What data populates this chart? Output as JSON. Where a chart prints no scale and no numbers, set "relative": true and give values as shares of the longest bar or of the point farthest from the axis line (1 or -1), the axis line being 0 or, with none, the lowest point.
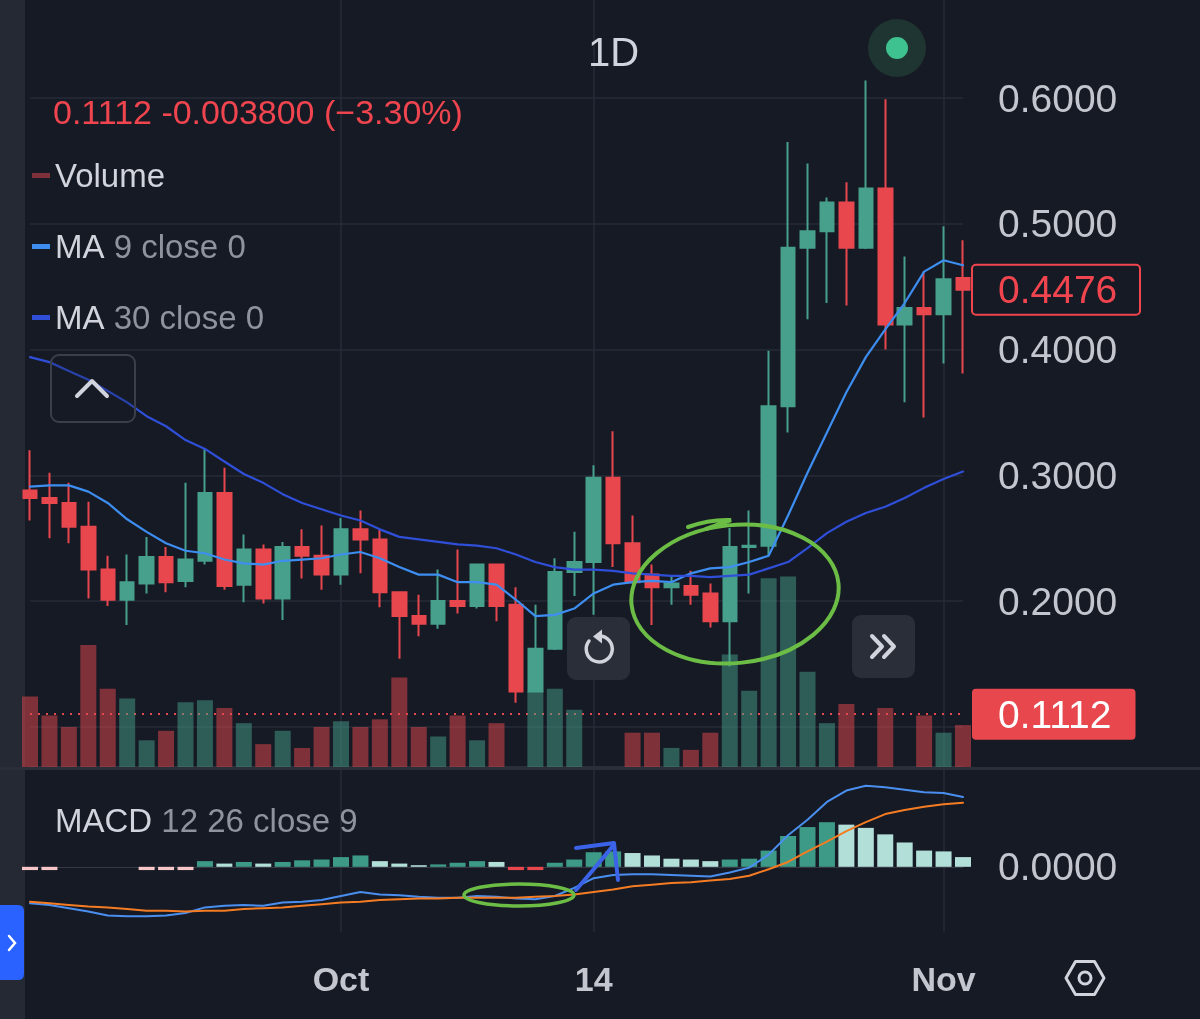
{
  "chart_data": [
    {
      "type": "candlestick",
      "title": "1D",
      "subtitle": "0.1112 -0.003800 (−3.30%)",
      "categories": [
        null,
        null,
        null,
        null,
        null,
        null,
        null,
        null,
        null,
        null,
        null,
        null,
        null,
        null,
        null,
        null,
        null,
        null,
        null,
        null,
        null,
        null,
        null,
        null,
        null,
        null,
        null,
        null,
        null,
        null,
        null,
        null,
        null,
        null,
        null,
        null,
        null,
        null,
        null,
        null,
        null,
        null,
        null,
        null,
        null,
        null,
        null,
        null,
        null
      ],
      "ohlc": [
        [
          0.288,
          0.32,
          0.264,
          0.282
        ],
        [
          0.282,
          0.302,
          0.25,
          0.278
        ],
        [
          0.278,
          0.294,
          0.246,
          0.259
        ],
        [
          0.259,
          0.279,
          0.202,
          0.225
        ],
        [
          0.225,
          0.236,
          0.196,
          0.201
        ],
        [
          0.201,
          0.237,
          0.181,
          0.215
        ],
        [
          0.214,
          0.251,
          0.206,
          0.235
        ],
        [
          0.235,
          0.243,
          0.207,
          0.215
        ],
        [
          0.216,
          0.294,
          0.211,
          0.233
        ],
        [
          0.232,
          0.321,
          0.229,
          0.286
        ],
        [
          0.286,
          0.306,
          0.209,
          0.212
        ],
        [
          0.213,
          0.253,
          0.199,
          0.241
        ],
        [
          0.241,
          0.245,
          0.198,
          0.202
        ],
        [
          0.202,
          0.247,
          0.185,
          0.243
        ],
        [
          0.243,
          0.257,
          0.218,
          0.236
        ],
        [
          0.236,
          0.26,
          0.209,
          0.221
        ],
        [
          0.221,
          0.266,
          0.213,
          0.257
        ],
        [
          0.257,
          0.272,
          0.222,
          0.249
        ],
        [
          0.249,
          0.257,
          0.195,
          0.207
        ],
        [
          0.207,
          0.207,
          0.154,
          0.188
        ],
        [
          0.188,
          0.205,
          0.172,
          0.182
        ],
        [
          0.182,
          0.225,
          0.178,
          0.2
        ],
        [
          0.2,
          0.241,
          0.19,
          0.196
        ],
        [
          0.196,
          0.229,
          0.194,
          0.229
        ],
        [
          0.229,
          0.229,
          0.184,
          0.196
        ],
        [
          0.197,
          0.211,
          0.119,
          0.128
        ],
        [
          0.128,
          0.197,
          0.128,
          0.162
        ],
        [
          0.162,
          0.234,
          0.161,
          0.223
        ],
        [
          0.223,
          0.255,
          0.204,
          0.231
        ],
        [
          0.231,
          0.308,
          0.189,
          0.298
        ],
        [
          0.298,
          0.335,
          0.227,
          0.246
        ],
        [
          0.246,
          0.268,
          0.214,
          0.215
        ],
        [
          0.221,
          0.229,
          0.181,
          0.211
        ],
        [
          0.211,
          0.22,
          0.197,
          0.214
        ],
        [
          0.212,
          0.224,
          0.197,
          0.205
        ],
        [
          0.206,
          0.214,
          0.179,
          0.184
        ],
        [
          0.184,
          0.258,
          0.148,
          0.243
        ],
        [
          0.243,
          0.272,
          0.206,
          0.244
        ],
        [
          0.244,
          0.399,
          0.236,
          0.355
        ],
        [
          0.355,
          0.565,
          0.334,
          0.481
        ],
        [
          0.481,
          0.548,
          0.424,
          0.494
        ],
        [
          0.494,
          0.521,
          0.437,
          0.517
        ],
        [
          0.517,
          0.533,
          0.435,
          0.481
        ],
        [
          0.481,
          0.614,
          0.48,
          0.528
        ],
        [
          0.528,
          0.599,
          0.4,
          0.42
        ],
        [
          0.42,
          0.474,
          0.358,
          0.433
        ],
        [
          0.433,
          0.462,
          0.346,
          0.428
        ],
        [
          0.428,
          0.498,
          0.389,
          0.456
        ],
        [
          0.457,
          0.487,
          0.381,
          0.4476
        ]
      ],
      "colors": [
        "#e8474d",
        "#e8474d",
        "#e8474d",
        "#e8474d",
        "#e8474d",
        "#46a08b",
        "#46a08b",
        "#e8474d",
        "#46a08b",
        "#46a08b",
        "#e8474d",
        "#46a08b",
        "#e8474d",
        "#46a08b",
        "#e8474d",
        "#e8474d",
        "#46a08b",
        "#e8474d",
        "#e8474d",
        "#e8474d",
        "#e8474d",
        "#46a08b",
        "#e8474d",
        "#46a08b",
        "#e8474d",
        "#e8474d",
        "#46a08b",
        "#46a08b",
        "#46a08b",
        "#46a08b",
        "#e8474d",
        "#e8474d",
        "#e8474d",
        "#46a08b",
        "#e8474d",
        "#e8474d",
        "#46a08b",
        "#46a08b",
        "#46a08b",
        "#46a08b",
        "#46a08b",
        "#46a08b",
        "#e8474d",
        "#46a08b",
        "#e8474d",
        "#46a08b",
        "#e8474d",
        "#46a08b",
        "#e8474d"
      ],
      "series": [
        {
          "name": "MA 9 close 0",
          "type": "line",
          "color": "#3d8ef0",
          "values": [
            0.291,
            0.292,
            0.292,
            0.287,
            0.278,
            0.265,
            0.255,
            0.246,
            0.24,
            0.238,
            0.233,
            0.23,
            0.229,
            0.232,
            0.233,
            0.234,
            0.237,
            0.239,
            0.234,
            0.227,
            0.221,
            0.221,
            0.215,
            0.215,
            0.213,
            0.201,
            0.188,
            0.189,
            0.194,
            0.206,
            0.213,
            0.215,
            0.216,
            0.215,
            0.222,
            0.226,
            0.227,
            0.231,
            0.236,
            0.268,
            0.302,
            0.334,
            0.366,
            0.394,
            0.416,
            0.437,
            0.462,
            0.471,
            0.467
          ]
        },
        {
          "name": "MA 30 close 0",
          "type": "line",
          "color": "#2f4fd8",
          "values": [
            0.394,
            0.39,
            0.383,
            0.376,
            0.367,
            0.358,
            0.347,
            0.339,
            0.328,
            0.321,
            0.311,
            0.301,
            0.294,
            0.285,
            0.278,
            0.273,
            0.268,
            0.264,
            0.257,
            0.251,
            0.249,
            0.247,
            0.245,
            0.244,
            0.242,
            0.237,
            0.231,
            0.227,
            0.225,
            0.225,
            0.224,
            0.222,
            0.221,
            0.22,
            0.22,
            0.219,
            0.22,
            0.221,
            0.226,
            0.231,
            0.242,
            0.254,
            0.263,
            0.27,
            0.275,
            0.282,
            0.29,
            0.297,
            0.303
          ]
        }
      ],
      "ylim": [
        0.068,
        0.678
      ],
      "yticks": [
        {
          "value": 0.1,
          "label": null
        },
        {
          "value": 0.2,
          "label": "0.2000"
        },
        {
          "value": 0.3,
          "label": "0.3000"
        },
        {
          "value": 0.4,
          "label": "0.4000"
        },
        {
          "value": 0.5,
          "label": "0.5000"
        },
        {
          "value": 0.6,
          "label": "0.6000"
        }
      ],
      "ref_lines": [
        {
          "axis": "y",
          "value": 0.1112,
          "label": "0.1112",
          "color": "#e8474d",
          "line_style": "dotted"
        }
      ],
      "annotations": [
        "0.4476"
      ],
      "grid": true,
      "legend": "top left",
      "tick_labels": "y",
      "marker": "none"
    },
    {
      "type": "bar",
      "relative": true,
      "categories": [
        null,
        null,
        null,
        null,
        null,
        null,
        null,
        null,
        null,
        null,
        null,
        null,
        null,
        null,
        null,
        null,
        null,
        null,
        null,
        null,
        null,
        null,
        null,
        null,
        null,
        null,
        null,
        null,
        null,
        null,
        null,
        null,
        null,
        null,
        null,
        null,
        null,
        null,
        null,
        null,
        null,
        null,
        null,
        null,
        null,
        null,
        null,
        null,
        null
      ],
      "series": [
        {
          "name": "Volume",
          "values": [
            0.37,
            0.27,
            0.21,
            0.64,
            0.41,
            0.36,
            0.14,
            0.19,
            0.34,
            0.35,
            0.31,
            0.23,
            0.12,
            0.19,
            0.1,
            0.21,
            0.24,
            0.21,
            0.25,
            0.47,
            0.21,
            0.16,
            0.27,
            0.14,
            0.23,
            null,
            0.4,
            0.41,
            0.3,
            null,
            null,
            0.18,
            0.18,
            0.1,
            0.09,
            0.18,
            0.59,
            0.4,
            0.99,
            1,
            0.5,
            0.23,
            0.33,
            null,
            0.31,
            null,
            0.27,
            0.18,
            0.22
          ],
          "colors": [
            "#e8474d",
            "#e8474d",
            "#e8474d",
            "#e8474d",
            "#e8474d",
            "#46a08b",
            "#46a08b",
            "#e8474d",
            "#46a08b",
            "#46a08b",
            "#e8474d",
            "#46a08b",
            "#e8474d",
            "#46a08b",
            "#e8474d",
            "#e8474d",
            "#46a08b",
            "#e8474d",
            "#e8474d",
            "#e8474d",
            "#e8474d",
            "#46a08b",
            "#e8474d",
            "#46a08b",
            "#e8474d",
            null,
            "#46a08b",
            "#46a08b",
            "#46a08b",
            null,
            null,
            "#e8474d",
            "#e8474d",
            "#46a08b",
            "#e8474d",
            "#e8474d",
            "#46a08b",
            "#46a08b",
            "#46a08b",
            "#46a08b",
            "#46a08b",
            "#46a08b",
            "#e8474d",
            null,
            "#e8474d",
            null,
            "#e8474d",
            "#46a08b",
            "#e8474d"
          ]
        }
      ],
      "legend": "top left",
      "tick_labels": false
    },
    {
      "type": "bar",
      "relative": true,
      "title": "MACD 12 26 close 9",
      "categories": [
        null,
        null,
        null,
        null,
        null,
        null,
        null,
        null,
        null,
        null,
        null,
        null,
        null,
        null,
        null,
        null,
        "Oct",
        null,
        null,
        null,
        null,
        null,
        null,
        null,
        null,
        null,
        null,
        null,
        null,
        "14",
        null,
        null,
        null,
        null,
        null,
        null,
        null,
        null,
        null,
        null,
        null,
        null,
        null,
        null,
        null,
        null,
        null,
        "Nov",
        null
      ],
      "series": [
        {
          "type": "bar",
          "values": [
            -0.04,
            -0.04,
            null,
            null,
            null,
            null,
            -0.04,
            -0.04,
            -0.04,
            0.07,
            0.04,
            0.06,
            0.04,
            0.06,
            0.08,
            0.09,
            0.12,
            0.14,
            0.07,
            0.04,
            0.02,
            0.03,
            0.05,
            0.07,
            0.06,
            -0.04,
            -0.04,
            0.05,
            0.09,
            0.18,
            0.19,
            0.17,
            0.14,
            0.1,
            0.09,
            0.07,
            0.09,
            0.1,
            0.2,
            0.38,
            0.49,
            0.55,
            0.52,
            0.48,
            0.4,
            0.3,
            0.2,
            0.19,
            0.12
          ],
          "colors": [
            "#f7c6c8",
            "#f7c6c8",
            null,
            null,
            null,
            null,
            "#f7c6c8",
            "#f7c6c8",
            "#f7c6c8",
            "#3d9a86",
            "#b3dfd9",
            "#3d9a86",
            "#b3dfd9",
            "#3d9a86",
            "#3d9a86",
            "#3d9a86",
            "#3d9a86",
            "#3d9a86",
            "#b3dfd9",
            "#b3dfd9",
            "#b3dfd9",
            "#3d9a86",
            "#3d9a86",
            "#3d9a86",
            "#b3dfd9",
            "#e8474d",
            "#e8474d",
            "#3d9a86",
            "#3d9a86",
            "#3d9a86",
            "#3d9a86",
            "#b3dfd9",
            "#b3dfd9",
            "#b3dfd9",
            "#b3dfd9",
            "#b3dfd9",
            "#3d9a86",
            "#3d9a86",
            "#3d9a86",
            "#3d9a86",
            "#3d9a86",
            "#3d9a86",
            "#b3dfd9",
            "#b3dfd9",
            "#b3dfd9",
            "#b3dfd9",
            "#b3dfd9",
            "#b3dfd9",
            "#b3dfd9"
          ]
        },
        {
          "type": "line",
          "color": "#4a8ff0",
          "values": [
            -0.45,
            -0.47,
            -0.51,
            -0.55,
            -0.6,
            -0.61,
            -0.61,
            -0.6,
            -0.57,
            -0.5,
            -0.48,
            -0.47,
            -0.48,
            -0.44,
            -0.43,
            -0.41,
            -0.36,
            -0.31,
            -0.34,
            -0.35,
            -0.37,
            -0.38,
            -0.38,
            -0.36,
            -0.37,
            -0.39,
            -0.4,
            -0.36,
            -0.26,
            -0.14,
            -0.1,
            -0.09,
            -0.09,
            -0.1,
            -0.11,
            -0.12,
            -0.07,
            -0.01,
            0.15,
            0.39,
            0.58,
            0.8,
            0.94,
            1,
            0.98,
            0.95,
            0.92,
            0.91,
            0.86
          ]
        },
        {
          "type": "line",
          "color": "#f57c22",
          "values": [
            -0.43,
            -0.45,
            -0.47,
            -0.49,
            -0.5,
            -0.52,
            -0.54,
            -0.54,
            -0.55,
            -0.54,
            -0.54,
            -0.52,
            -0.51,
            -0.5,
            -0.48,
            -0.46,
            -0.44,
            -0.43,
            -0.41,
            -0.4,
            -0.39,
            -0.39,
            -0.38,
            -0.38,
            -0.38,
            -0.38,
            -0.37,
            -0.36,
            -0.34,
            -0.31,
            -0.28,
            -0.24,
            -0.22,
            -0.2,
            -0.19,
            -0.17,
            -0.15,
            -0.11,
            -0.03,
            0.06,
            0.19,
            0.31,
            0.44,
            0.55,
            0.65,
            0.7,
            0.74,
            0.77,
            0.79
          ]
        }
      ],
      "annotations": [
        "0.0000"
      ],
      "grid": "x",
      "tick_labels": "x",
      "marker": "none"
    }
  ]
}
